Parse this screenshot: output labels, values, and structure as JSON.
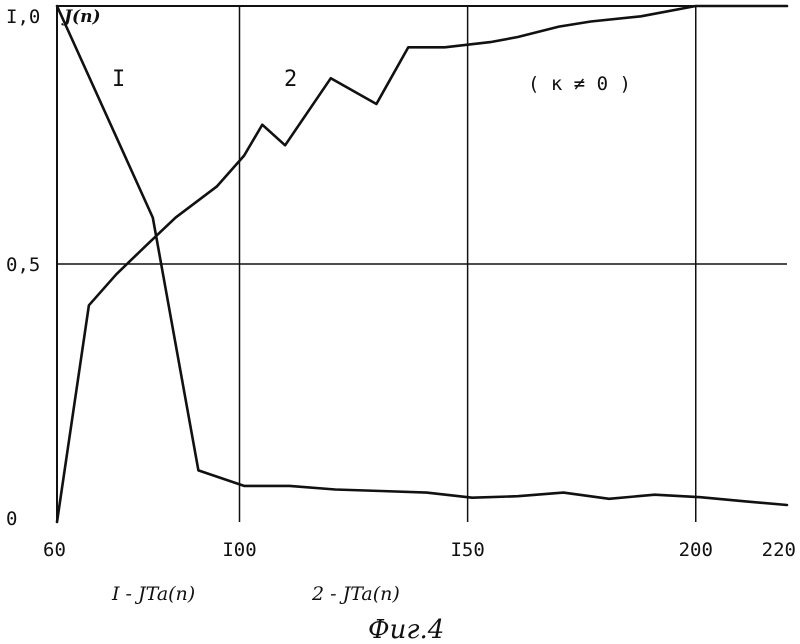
{
  "chart_data": {
    "type": "line",
    "title": "",
    "ylabel": "J(n)",
    "xlabel": "",
    "xlim": [
      60,
      220
    ],
    "ylim": [
      0,
      1.0
    ],
    "grid": true,
    "x_ticks": [
      60,
      100,
      150,
      200,
      220
    ],
    "x_tick_labels": [
      "60",
      "I00",
      "I50",
      "200",
      "220"
    ],
    "y_ticks": [
      0,
      0.5,
      1.0
    ],
    "y_tick_labels": [
      "0",
      "0,5",
      "I,0"
    ],
    "region_labels": [
      {
        "text": "I",
        "x": 75,
        "y": 0.9
      },
      {
        "text": "2",
        "x": 128,
        "y": 0.9
      }
    ],
    "condition_label": "( к ≠ 0 )",
    "legend": [
      {
        "text": "I - JTa(n)",
        "series": 0
      },
      {
        "text": "2 - JTa(n)",
        "series": 1
      }
    ],
    "caption": "Фиг.4",
    "series": [
      {
        "id": "1",
        "x": [
          60,
          81,
          91,
          101,
          111,
          121,
          131,
          141,
          151,
          161,
          171,
          181,
          191,
          201,
          211,
          220
        ],
        "y": [
          1.0,
          0.59,
          0.1,
          0.07,
          0.07,
          0.063,
          0.06,
          0.057,
          0.047,
          0.05,
          0.057,
          0.045,
          0.053,
          0.048,
          0.04,
          0.033
        ]
      },
      {
        "id": "2",
        "x": [
          60,
          67,
          73,
          80,
          86,
          95,
          101,
          105,
          110,
          120,
          130,
          137,
          145,
          155,
          161,
          170,
          177,
          188,
          200,
          220
        ],
        "y": [
          0.0,
          0.42,
          0.48,
          0.54,
          0.59,
          0.65,
          0.71,
          0.77,
          0.73,
          0.86,
          0.81,
          0.92,
          0.92,
          0.93,
          0.94,
          0.96,
          0.97,
          0.98,
          1.0,
          1.0
        ]
      }
    ]
  }
}
